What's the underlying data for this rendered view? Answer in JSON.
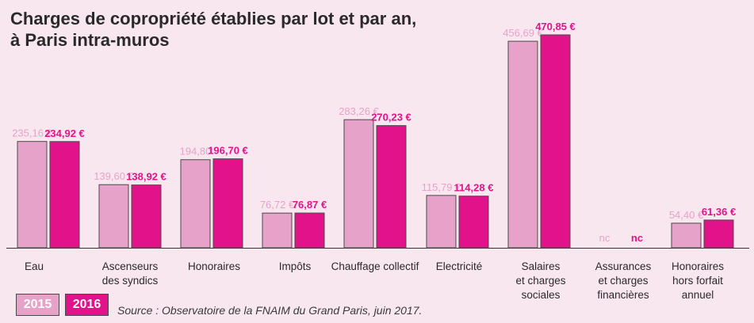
{
  "title_lines": [
    "Charges de copropriété établies par lot et par an,",
    "à Paris intra-muros"
  ],
  "legend": [
    "2015",
    "2016"
  ],
  "source": "Source : Observatoire de la FNAIM du Grand Paris, juin 2017.",
  "colors": {
    "2015": "#e6a2c8",
    "2016": "#e2138a",
    "axis": "#333333"
  },
  "chart_data": {
    "type": "bar",
    "categories": [
      [
        "Eau"
      ],
      [
        "Ascenseurs",
        "des syndics"
      ],
      [
        "Honoraires"
      ],
      [
        "Impôts"
      ],
      [
        "Chauffage collectif"
      ],
      [
        "Electricité"
      ],
      [
        "Salaires",
        "et charges",
        "sociales"
      ],
      [
        "Assurances",
        "et charges",
        "financières"
      ],
      [
        "Honoraires",
        "hors forfait",
        "annuel"
      ]
    ],
    "series": [
      {
        "name": "2015",
        "values": [
          235.16,
          139.6,
          194.8,
          76.72,
          283.26,
          115.79,
          456.69,
          null,
          54.4
        ],
        "labels": [
          "235,16 €",
          "139,60 €",
          "194,80",
          "76,72 €",
          "283,26 €",
          "115,79 €",
          "456,69 €",
          "nc",
          "54,40 €"
        ]
      },
      {
        "name": "2016",
        "values": [
          234.92,
          138.92,
          196.7,
          76.87,
          270.23,
          114.28,
          470.85,
          null,
          61.36
        ],
        "labels": [
          "234,92 €",
          "138,92 €",
          "196,70 €",
          "76,87 €",
          "270,23 €",
          "114,28 €",
          "470,85 €",
          "nc",
          "61,36 €"
        ]
      }
    ],
    "ylim": [
      0,
      470.85
    ],
    "grid": false
  }
}
